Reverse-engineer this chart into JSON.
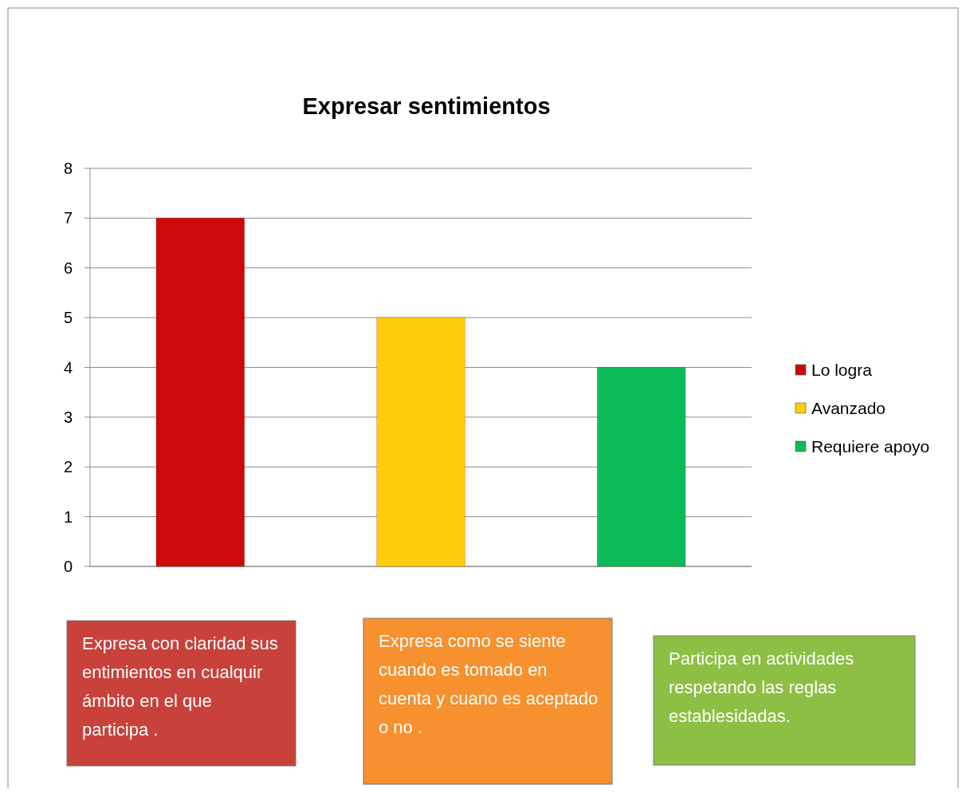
{
  "chart_data": {
    "type": "bar",
    "title": "Expresar sentimientos",
    "categories": [
      null
    ],
    "series": [
      {
        "name": "Lo logra",
        "color": "#cc0a0a",
        "values": [
          7
        ]
      },
      {
        "name": "Avanzado",
        "color": "#ffcc0a",
        "values": [
          5
        ]
      },
      {
        "name": "Requiere apoyo",
        "color": "#0bbb55",
        "values": [
          4
        ]
      }
    ],
    "ylim": [
      0,
      8
    ],
    "yticks": [
      0,
      1,
      2,
      3,
      4,
      5,
      6,
      7,
      8
    ],
    "grid": "y",
    "legend": "right",
    "annotations": [
      "Expresa con claridad sus entimientos en cualquir ámbito en el que participa .",
      "Expresa como se siente cuando es tomado en cuenta y cuano es aceptado o no .",
      "Participa en actividades respetando las reglas establesidadas."
    ]
  }
}
